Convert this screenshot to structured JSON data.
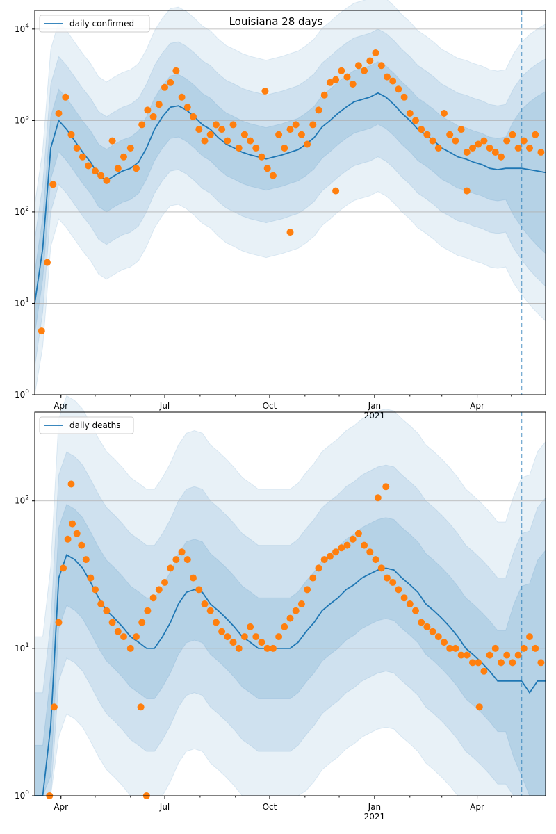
{
  "figure": {
    "title": "Louisiana 28 days"
  },
  "colors": {
    "line": "#1f77b4",
    "points": "#ff7f0e",
    "band": "#1f77b4",
    "grid": "#b0b0b0",
    "vline": "#1f77b4"
  },
  "chart_data": [
    {
      "type": "line",
      "scale": "log",
      "title": "Louisiana 28 days",
      "legend": "daily confirmed",
      "legend_position": "top-left",
      "grid": true,
      "x_range": [
        "2020-03-09",
        "2021-05-31"
      ],
      "ylim": [
        1,
        16000
      ],
      "y_ticks": [
        1,
        10,
        100,
        1000,
        10000
      ],
      "y_tick_labels": [
        "10^0",
        "10^1",
        "10^2",
        "10^3",
        "10^4"
      ],
      "x_ticks": [
        "Apr",
        "Jul",
        "Oct",
        "Jan\n2021",
        "Apr"
      ],
      "forecast_start": "2021-05-10",
      "series": [
        {
          "name": "daily confirmed",
          "x": [
            "2020-03-09",
            "2020-03-16",
            "2020-03-23",
            "2020-03-30",
            "2020-04-06",
            "2020-04-13",
            "2020-04-20",
            "2020-04-27",
            "2020-05-04",
            "2020-05-11",
            "2020-05-18",
            "2020-05-25",
            "2020-06-01",
            "2020-06-08",
            "2020-06-15",
            "2020-06-22",
            "2020-06-29",
            "2020-07-06",
            "2020-07-13",
            "2020-07-20",
            "2020-07-27",
            "2020-08-03",
            "2020-08-10",
            "2020-08-17",
            "2020-08-24",
            "2020-08-31",
            "2020-09-07",
            "2020-09-14",
            "2020-09-21",
            "2020-09-28",
            "2020-10-05",
            "2020-10-12",
            "2020-10-19",
            "2020-10-26",
            "2020-11-02",
            "2020-11-09",
            "2020-11-16",
            "2020-11-23",
            "2020-11-30",
            "2020-12-07",
            "2020-12-14",
            "2020-12-21",
            "2020-12-28",
            "2021-01-04",
            "2021-01-11",
            "2021-01-18",
            "2021-01-25",
            "2021-02-01",
            "2021-02-08",
            "2021-02-15",
            "2021-02-22",
            "2021-03-01",
            "2021-03-08",
            "2021-03-15",
            "2021-03-22",
            "2021-03-29",
            "2021-04-05",
            "2021-04-12",
            "2021-04-19",
            "2021-04-26",
            "2021-05-03",
            "2021-05-10",
            "2021-05-17",
            "2021-05-24",
            "2021-05-31"
          ],
          "values": [
            10,
            40,
            500,
            1000,
            800,
            600,
            450,
            350,
            250,
            220,
            250,
            280,
            300,
            350,
            500,
            800,
            1100,
            1400,
            1450,
            1300,
            1100,
            900,
            800,
            650,
            550,
            500,
            450,
            420,
            400,
            380,
            400,
            420,
            450,
            480,
            550,
            650,
            850,
            1000,
            1200,
            1400,
            1600,
            1700,
            1800,
            2000,
            1800,
            1500,
            1200,
            1000,
            800,
            700,
            600,
            500,
            450,
            400,
            380,
            350,
            330,
            300,
            290,
            300,
            300,
            300,
            290,
            280,
            270
          ]
        }
      ],
      "points": {
        "x": [
          "2020-03-15",
          "2020-03-20",
          "2020-03-25",
          "2020-03-30",
          "2020-04-05",
          "2020-04-10",
          "2020-04-15",
          "2020-04-20",
          "2020-04-25",
          "2020-05-01",
          "2020-05-06",
          "2020-05-11",
          "2020-05-16",
          "2020-05-21",
          "2020-05-26",
          "2020-06-01",
          "2020-06-06",
          "2020-06-11",
          "2020-06-16",
          "2020-06-21",
          "2020-06-26",
          "2020-07-01",
          "2020-07-06",
          "2020-07-11",
          "2020-07-16",
          "2020-07-21",
          "2020-07-26",
          "2020-07-31",
          "2020-08-05",
          "2020-08-10",
          "2020-08-15",
          "2020-08-20",
          "2020-08-25",
          "2020-08-30",
          "2020-09-04",
          "2020-09-09",
          "2020-09-14",
          "2020-09-19",
          "2020-09-24",
          "2020-09-29",
          "2020-10-04",
          "2020-10-09",
          "2020-10-14",
          "2020-10-19",
          "2020-10-24",
          "2020-10-29",
          "2020-11-03",
          "2020-11-08",
          "2020-11-13",
          "2020-11-18",
          "2020-11-23",
          "2020-11-28",
          "2020-12-03",
          "2020-12-08",
          "2020-12-13",
          "2020-12-18",
          "2020-12-23",
          "2020-12-28",
          "2021-01-02",
          "2021-01-07",
          "2021-01-12",
          "2021-01-17",
          "2021-01-22",
          "2021-01-27",
          "2021-02-01",
          "2021-02-06",
          "2021-02-11",
          "2021-02-16",
          "2021-02-21",
          "2021-02-26",
          "2021-03-03",
          "2021-03-08",
          "2021-03-13",
          "2021-03-18",
          "2021-03-23",
          "2021-03-28",
          "2021-04-02",
          "2021-04-07",
          "2021-04-12",
          "2021-04-17",
          "2021-04-22",
          "2021-04-27",
          "2021-05-02",
          "2021-05-07",
          "2021-05-12",
          "2021-05-17",
          "2021-05-22",
          "2021-05-27"
        ],
        "values": [
          5,
          28,
          200,
          1200,
          1800,
          700,
          500,
          400,
          320,
          280,
          250,
          220,
          600,
          300,
          400,
          500,
          300,
          900,
          1300,
          1100,
          1500,
          2300,
          2600,
          3500,
          1800,
          1400,
          1100,
          800,
          600,
          700,
          900,
          800,
          600,
          900,
          500,
          700,
          600,
          500,
          400,
          300,
          250,
          700,
          500,
          800,
          900,
          700,
          550,
          900,
          1300,
          1900,
          2600,
          2800,
          3500,
          3000,
          2500,
          4000,
          3500,
          4500,
          5500,
          4000,
          3000,
          2700,
          2200,
          1800,
          1200,
          1000,
          800,
          700,
          600,
          500,
          1200,
          700,
          600,
          800,
          450,
          500,
          550,
          600,
          500,
          450,
          400,
          600,
          700,
          500,
          600,
          500,
          700,
          450
        ],
        "outliers": [
          {
            "x": "2020-09-27",
            "y": 2100
          },
          {
            "x": "2020-10-19",
            "y": 60
          },
          {
            "x": "2020-11-28",
            "y": 170
          },
          {
            "x": "2021-03-23",
            "y": 170
          }
        ]
      }
    },
    {
      "type": "line",
      "scale": "log",
      "legend": "daily deaths",
      "legend_position": "top-left",
      "grid": true,
      "x_range": [
        "2020-03-09",
        "2021-05-31"
      ],
      "ylim": [
        1,
        400
      ],
      "y_ticks": [
        1,
        10,
        100
      ],
      "y_tick_labels": [
        "10^0",
        "10^1",
        "10^2"
      ],
      "x_ticks": [
        "Apr",
        "Jul",
        "Oct",
        "Jan\n2021",
        "Apr"
      ],
      "forecast_start": "2021-05-10",
      "series": [
        {
          "name": "daily deaths",
          "x": [
            "2020-03-09",
            "2020-03-16",
            "2020-03-23",
            "2020-03-30",
            "2020-04-06",
            "2020-04-13",
            "2020-04-20",
            "2020-04-27",
            "2020-05-04",
            "2020-05-11",
            "2020-05-18",
            "2020-05-25",
            "2020-06-01",
            "2020-06-08",
            "2020-06-15",
            "2020-06-22",
            "2020-06-29",
            "2020-07-06",
            "2020-07-13",
            "2020-07-20",
            "2020-07-27",
            "2020-08-03",
            "2020-08-10",
            "2020-08-17",
            "2020-08-24",
            "2020-08-31",
            "2020-09-07",
            "2020-09-14",
            "2020-09-21",
            "2020-09-28",
            "2020-10-05",
            "2020-10-12",
            "2020-10-19",
            "2020-10-26",
            "2020-11-02",
            "2020-11-09",
            "2020-11-16",
            "2020-11-23",
            "2020-11-30",
            "2020-12-07",
            "2020-12-14",
            "2020-12-21",
            "2020-12-28",
            "2021-01-04",
            "2021-01-11",
            "2021-01-18",
            "2021-01-25",
            "2021-02-01",
            "2021-02-08",
            "2021-02-15",
            "2021-02-22",
            "2021-03-01",
            "2021-03-08",
            "2021-03-15",
            "2021-03-22",
            "2021-03-29",
            "2021-04-05",
            "2021-04-12",
            "2021-04-19",
            "2021-04-26",
            "2021-05-03",
            "2021-05-10",
            "2021-05-17",
            "2021-05-24",
            "2021-05-31"
          ],
          "values": [
            1,
            1,
            3,
            30,
            43,
            40,
            35,
            28,
            22,
            18,
            16,
            14,
            12,
            11,
            10,
            10,
            12,
            15,
            20,
            24,
            25,
            24,
            20,
            18,
            16,
            14,
            12,
            11,
            10,
            10,
            10,
            10,
            10,
            11,
            13,
            15,
            18,
            20,
            22,
            25,
            27,
            30,
            32,
            34,
            35,
            34,
            30,
            27,
            24,
            20,
            18,
            16,
            14,
            12,
            10,
            9,
            8,
            7,
            6,
            6,
            6,
            6,
            5,
            6,
            6
          ]
        }
      ],
      "points": {
        "x": [
          "2020-03-22",
          "2020-03-26",
          "2020-03-30",
          "2020-04-03",
          "2020-04-07",
          "2020-04-11",
          "2020-04-15",
          "2020-04-19",
          "2020-04-23",
          "2020-04-27",
          "2020-05-01",
          "2020-05-06",
          "2020-05-11",
          "2020-05-16",
          "2020-05-21",
          "2020-05-26",
          "2020-06-01",
          "2020-06-06",
          "2020-06-11",
          "2020-06-16",
          "2020-06-21",
          "2020-06-26",
          "2020-07-01",
          "2020-07-06",
          "2020-07-11",
          "2020-07-16",
          "2020-07-21",
          "2020-07-26",
          "2020-07-31",
          "2020-08-05",
          "2020-08-10",
          "2020-08-15",
          "2020-08-20",
          "2020-08-25",
          "2020-08-30",
          "2020-09-04",
          "2020-09-09",
          "2020-09-14",
          "2020-09-19",
          "2020-09-24",
          "2020-09-29",
          "2020-10-04",
          "2020-10-09",
          "2020-10-14",
          "2020-10-19",
          "2020-10-24",
          "2020-10-29",
          "2020-11-03",
          "2020-11-08",
          "2020-11-13",
          "2020-11-18",
          "2020-11-23",
          "2020-11-28",
          "2020-12-03",
          "2020-12-08",
          "2020-12-13",
          "2020-12-18",
          "2020-12-23",
          "2020-12-28",
          "2021-01-02",
          "2021-01-07",
          "2021-01-12",
          "2021-01-17",
          "2021-01-22",
          "2021-01-27",
          "2021-02-01",
          "2021-02-06",
          "2021-02-11",
          "2021-02-16",
          "2021-02-21",
          "2021-02-26",
          "2021-03-03",
          "2021-03-08",
          "2021-03-13",
          "2021-03-18",
          "2021-03-23",
          "2021-03-28",
          "2021-04-02",
          "2021-04-07",
          "2021-04-12",
          "2021-04-17",
          "2021-04-22",
          "2021-04-27",
          "2021-05-02",
          "2021-05-07",
          "2021-05-12",
          "2021-05-17",
          "2021-05-22",
          "2021-05-27"
        ],
        "values": [
          1,
          4,
          15,
          35,
          55,
          70,
          60,
          50,
          40,
          30,
          25,
          20,
          18,
          15,
          13,
          12,
          10,
          12,
          15,
          18,
          22,
          25,
          28,
          35,
          40,
          45,
          40,
          30,
          25,
          20,
          18,
          15,
          13,
          12,
          11,
          10,
          12,
          14,
          12,
          11,
          10,
          10,
          12,
          14,
          16,
          18,
          20,
          25,
          30,
          35,
          40,
          42,
          45,
          48,
          50,
          55,
          60,
          50,
          45,
          40,
          35,
          30,
          28,
          25,
          22,
          20,
          18,
          15,
          14,
          13,
          12,
          11,
          10,
          10,
          9,
          9,
          8,
          8,
          7,
          9,
          10,
          8,
          9,
          8,
          9,
          10,
          12,
          10,
          8
        ],
        "outliers": [
          {
            "x": "2020-04-10",
            "y": 130
          },
          {
            "x": "2020-06-10",
            "y": 4
          },
          {
            "x": "2020-06-15",
            "y": 1
          },
          {
            "x": "2021-01-04",
            "y": 105
          },
          {
            "x": "2021-01-11",
            "y": 125
          },
          {
            "x": "2021-04-03",
            "y": 4
          }
        ]
      }
    }
  ]
}
